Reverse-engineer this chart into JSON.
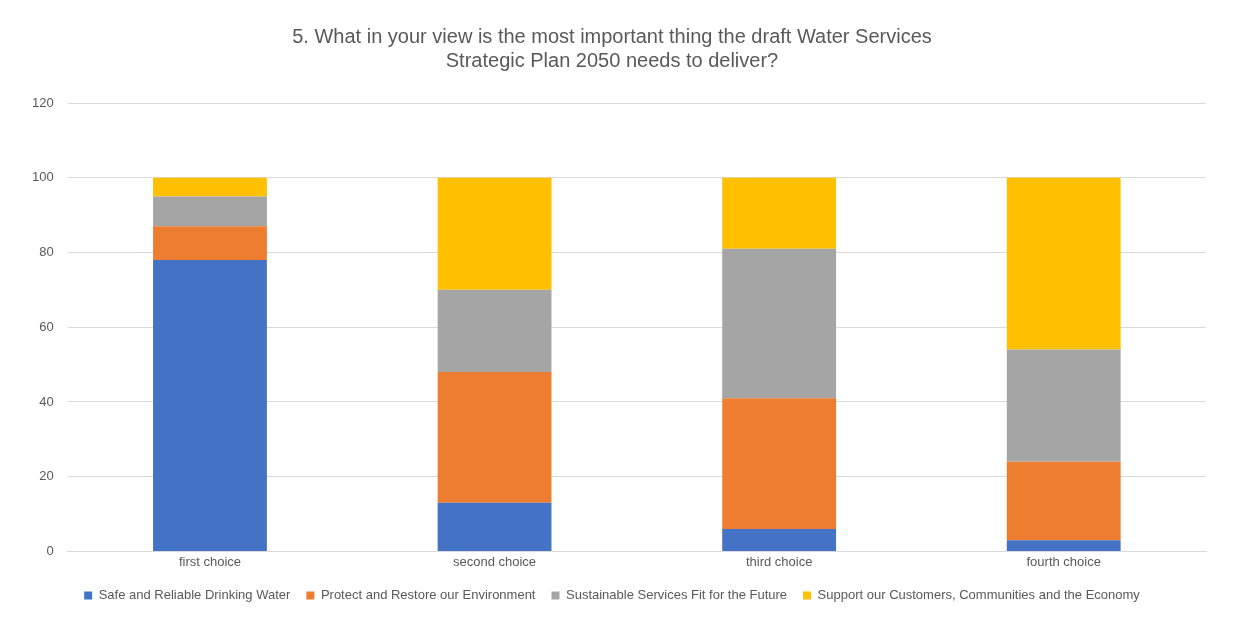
{
  "chart_data": {
    "type": "bar",
    "title": "5. What in your view is the most important thing the draft Water Services Strategic Plan 2050 needs to deliver?",
    "categories": [
      "first choice",
      "second choice",
      "third choice",
      "fourth choice"
    ],
    "stacked": true,
    "ylim": [
      0,
      120
    ],
    "yticks": [
      0,
      20,
      40,
      60,
      80,
      100,
      120
    ],
    "grid": "y",
    "legend": "bottom",
    "series": [
      {
        "name": "Safe and Reliable Drinking Water",
        "color": "#4472c4",
        "values": [
          78,
          13,
          6,
          3
        ]
      },
      {
        "name": "Protect and Restore our Environment",
        "color": "#ed7d31",
        "values": [
          9,
          35,
          35,
          21
        ]
      },
      {
        "name": "Sustainable Services Fit for the Future",
        "color": "#a5a5a5",
        "values": [
          8,
          22,
          40,
          30
        ]
      },
      {
        "name": "Support our Customers, Communities and the Economy",
        "color": "#ffc000",
        "values": [
          5,
          30,
          19,
          46
        ]
      }
    ]
  }
}
